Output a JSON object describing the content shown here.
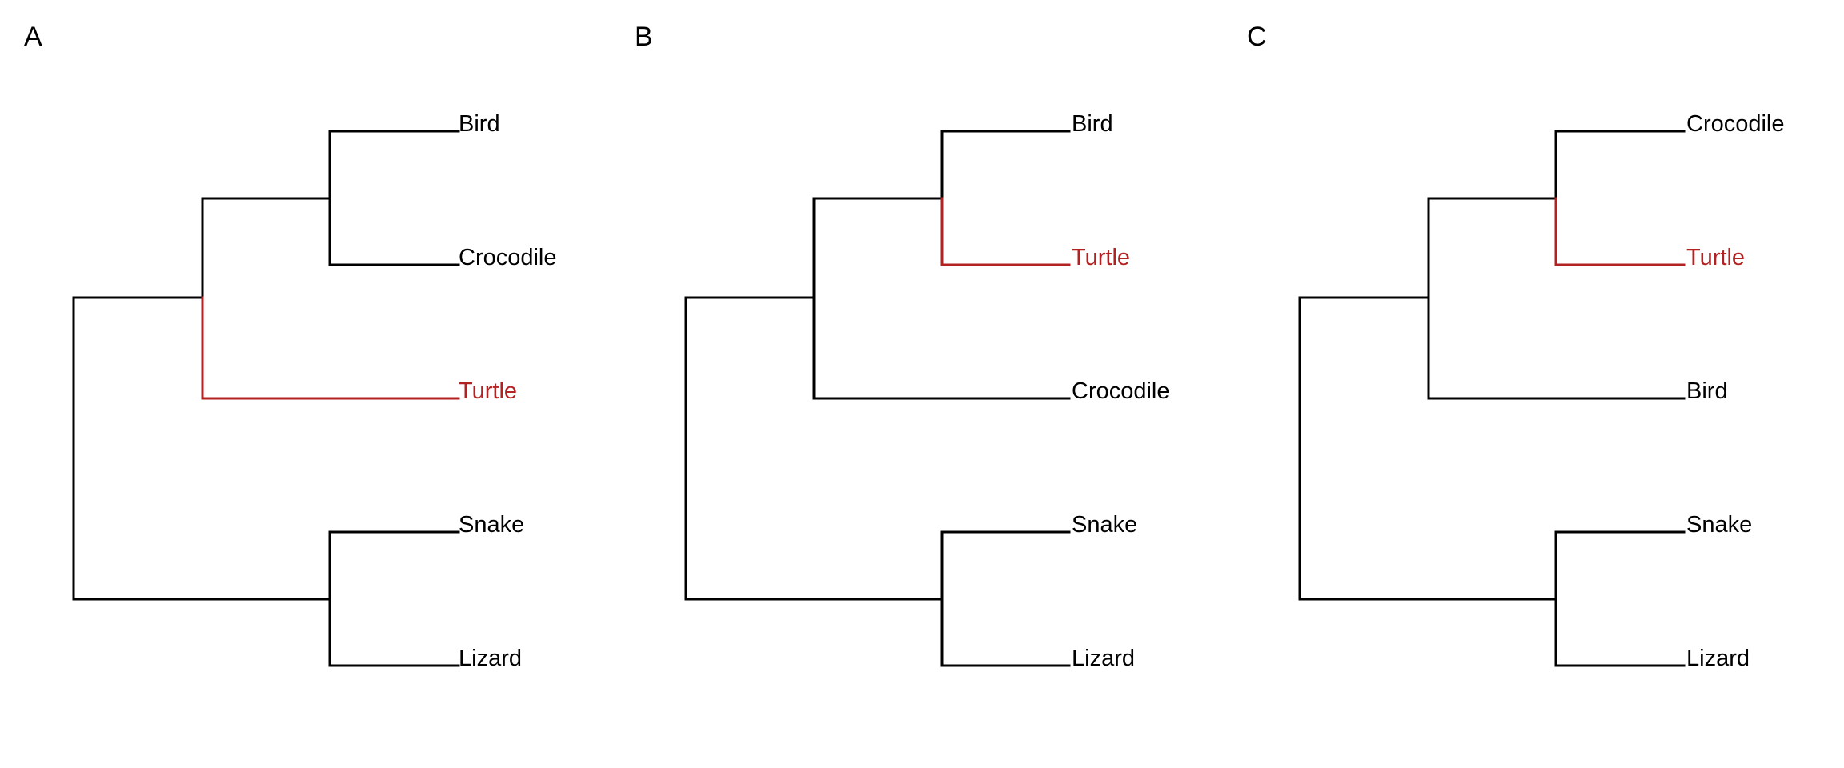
{
  "colors": {
    "default": "#000000",
    "highlight": "#b22222",
    "background": "#ffffff"
  },
  "panels": [
    {
      "label": "A",
      "tips": [
        {
          "name": "Bird",
          "highlight": false
        },
        {
          "name": "Crocodile",
          "highlight": false
        },
        {
          "name": "Turtle",
          "highlight": true
        },
        {
          "name": "Snake",
          "highlight": false
        },
        {
          "name": "Lizard",
          "highlight": false
        }
      ]
    },
    {
      "label": "B",
      "tips": [
        {
          "name": "Bird",
          "highlight": false
        },
        {
          "name": "Turtle",
          "highlight": true
        },
        {
          "name": "Crocodile",
          "highlight": false
        },
        {
          "name": "Snake",
          "highlight": false
        },
        {
          "name": "Lizard",
          "highlight": false
        }
      ]
    },
    {
      "label": "C",
      "tips": [
        {
          "name": "Crocodile",
          "highlight": false
        },
        {
          "name": "Turtle",
          "highlight": true
        },
        {
          "name": "Bird",
          "highlight": false
        },
        {
          "name": "Snake",
          "highlight": false
        },
        {
          "name": "Lizard",
          "highlight": false
        }
      ]
    }
  ]
}
